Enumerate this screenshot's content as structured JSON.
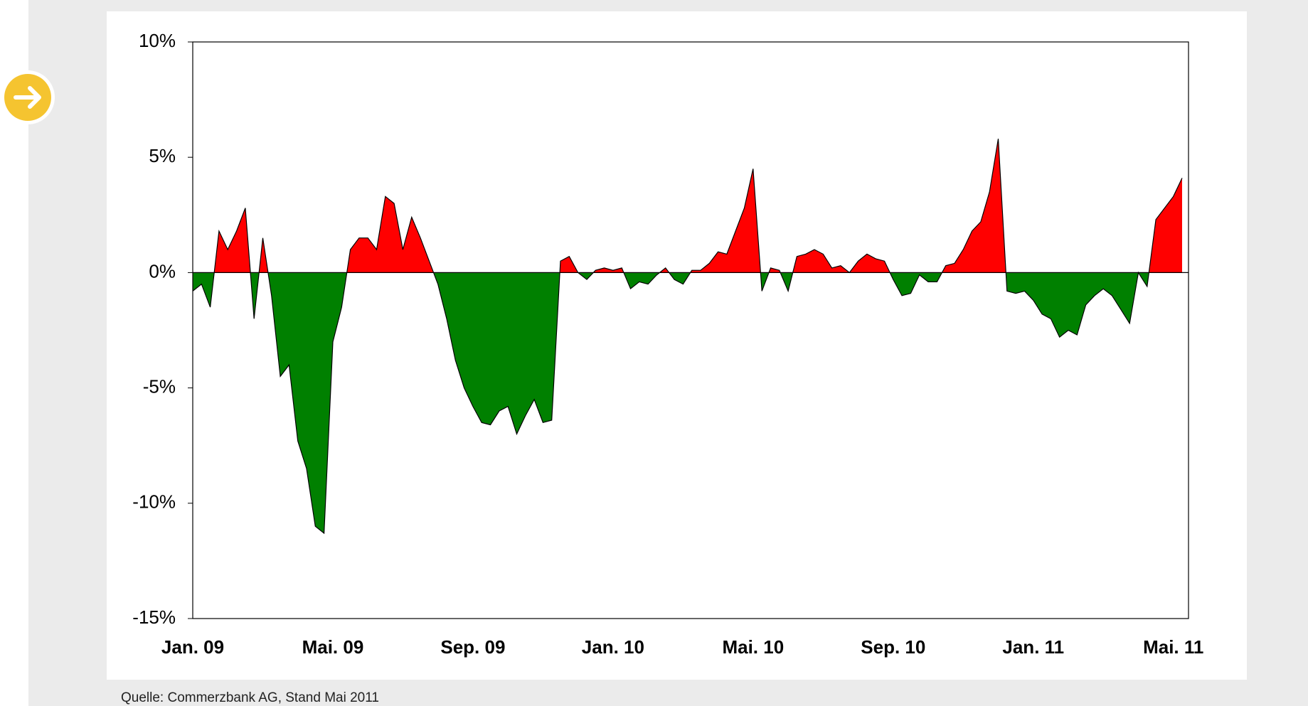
{
  "chart_data": {
    "type": "area",
    "categories": [
      "Jan. 09",
      null,
      null,
      null,
      null,
      null,
      null,
      null,
      null,
      null,
      null,
      null,
      null,
      null,
      null,
      null,
      "Mai. 09",
      null,
      null,
      null,
      null,
      null,
      null,
      null,
      null,
      null,
      null,
      null,
      null,
      null,
      null,
      null,
      "Sep. 09",
      null,
      null,
      null,
      null,
      null,
      null,
      null,
      null,
      null,
      null,
      null,
      null,
      null,
      null,
      null,
      "Jan. 10",
      null,
      null,
      null,
      null,
      null,
      null,
      null,
      null,
      null,
      null,
      null,
      null,
      null,
      null,
      null,
      "Mai. 10",
      null,
      null,
      null,
      null,
      null,
      null,
      null,
      null,
      null,
      null,
      null,
      null,
      null,
      null,
      null,
      "Sep. 10",
      null,
      null,
      null,
      null,
      null,
      null,
      null,
      null,
      null,
      null,
      null,
      null,
      null,
      null,
      null,
      "Jan. 11",
      null,
      null,
      null,
      null,
      null,
      null,
      null,
      null,
      null,
      null,
      null,
      null,
      null,
      null,
      null,
      "Mai. 11",
      null
    ],
    "values": [
      -0.8,
      -0.5,
      -1.5,
      1.8,
      1.0,
      1.8,
      2.8,
      -2.0,
      1.5,
      -1.0,
      -4.5,
      -4.0,
      -7.3,
      -8.5,
      -11,
      -11.3,
      -3.0,
      -1.5,
      1.0,
      1.5,
      1.5,
      1.0,
      3.3,
      3.0,
      1.0,
      2.4,
      1.5,
      0.5,
      -0.5,
      -2.0,
      -3.8,
      -5.0,
      -5.8,
      -6.5,
      -6.6,
      -6.0,
      -5.8,
      -7.0,
      -6.2,
      -5.5,
      -6.5,
      -6.4,
      0.5,
      0.7,
      0.0,
      -0.3,
      0.1,
      0.2,
      0.1,
      0.2,
      -0.7,
      -0.4,
      -0.5,
      -0.1,
      0.2,
      -0.3,
      -0.5,
      0.1,
      0.1,
      0.4,
      0.9,
      0.8,
      1.8,
      2.8,
      4.5,
      -0.8,
      0.2,
      0.1,
      -0.8,
      0.7,
      0.8,
      1.0,
      0.8,
      0.2,
      0.3,
      0.0,
      0.5,
      0.8,
      0.6,
      0.5,
      -0.3,
      -1.0,
      -0.9,
      -0.1,
      -0.4,
      -0.4,
      0.3,
      0.4,
      1.0,
      1.8,
      2.2,
      3.5,
      5.8,
      -0.8,
      -0.9,
      -0.8,
      -1.2,
      -1.8,
      -2.0,
      -2.8,
      -2.5,
      -2.7,
      -1.4,
      -1.0,
      -0.7,
      -1.0,
      -1.6,
      -2.2,
      0.0,
      -0.6,
      2.3,
      2.8,
      3.3,
      4.1
    ],
    "positive_color": "#ff0000",
    "negative_color": "#008000",
    "ylim": [
      -15,
      10
    ],
    "yticks": [
      {
        "value": -15,
        "label": "-15%"
      },
      {
        "value": -10,
        "label": "-10%"
      },
      {
        "value": -5,
        "label": "-5%"
      },
      {
        "value": 0,
        "label": "0%"
      },
      {
        "value": 5,
        "label": "5%"
      },
      {
        "value": 10,
        "label": "10%"
      }
    ],
    "grid": false,
    "source": "Quelle: Commerzbank AG, Stand Mai 2011"
  }
}
